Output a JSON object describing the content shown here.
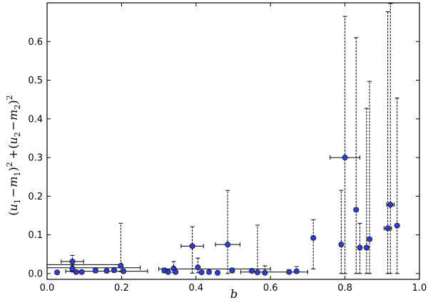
{
  "chart_data": {
    "type": "scatter",
    "xlabel": "b",
    "ylabel": "(u₁−m₁)² + (u₂−m₂)²",
    "ylabel_parts": {
      "open1": "(",
      "u1": "u",
      "s1": "1",
      "minus1": "−",
      "m1": "m",
      "s1b": "1",
      "close1": ")",
      "sq1": "2",
      "plus": "+",
      "open2": "(",
      "u2": "u",
      "s2": "2",
      "minus2": "−",
      "m2": "m",
      "s2b": "2",
      "close2": ")",
      "sq2": "2"
    },
    "xlim": [
      0.0,
      1.0
    ],
    "ylim": [
      -0.015,
      0.7
    ],
    "x_ticks": [
      0.0,
      0.2,
      0.4,
      0.6,
      0.8,
      1.0
    ],
    "x_tick_labels": [
      "0.0",
      "0.2",
      "0.4",
      "0.6",
      "0.8",
      "1.0"
    ],
    "y_ticks": [
      0.0,
      0.1,
      0.2,
      0.3,
      0.4,
      0.5,
      0.6
    ],
    "y_tick_labels": [
      "0.0",
      "0.1",
      "0.2",
      "0.3",
      "0.4",
      "0.5",
      "0.6"
    ],
    "grid": false,
    "legend": "none",
    "marker_color": "#2f3bd6",
    "errorbar_color": "#000000",
    "points": [
      {
        "x": 0.027,
        "y": 0.003,
        "xerr": 0.0,
        "yerr_lo": 0.003,
        "yerr_hi": 0.003
      },
      {
        "x": 0.068,
        "y": 0.031,
        "xerr": 0.03,
        "yerr_lo": 0.02,
        "yerr_hi": 0.016
      },
      {
        "x": 0.068,
        "y": 0.012,
        "xerr": 0.0,
        "yerr_lo": 0.008,
        "yerr_hi": 0.008
      },
      {
        "x": 0.078,
        "y": 0.004,
        "xerr": 0.0,
        "yerr_lo": 0.004,
        "yerr_hi": 0.004
      },
      {
        "x": 0.093,
        "y": 0.004,
        "xerr": 0.0,
        "yerr_lo": 0.004,
        "yerr_hi": 0.004
      },
      {
        "x": 0.13,
        "y": 0.008,
        "xerr": 0.0,
        "yerr_lo": 0.006,
        "yerr_hi": 0.006
      },
      {
        "x": 0.16,
        "y": 0.007,
        "xerr": 0.0,
        "yerr_lo": 0.005,
        "yerr_hi": 0.005
      },
      {
        "x": 0.18,
        "y": 0.009,
        "xerr": 0.0,
        "yerr_lo": 0.006,
        "yerr_hi": 0.006
      },
      {
        "x": 0.198,
        "y": 0.02,
        "xerr": 0.0,
        "yerr_lo": 0.015,
        "yerr_hi": 0.11
      },
      {
        "x": 0.205,
        "y": 0.006,
        "xerr": 0.0,
        "yerr_lo": 0.005,
        "yerr_hi": 0.005
      },
      {
        "x": 0.315,
        "y": 0.008,
        "xerr": 0.0,
        "yerr_lo": 0.006,
        "yerr_hi": 0.006
      },
      {
        "x": 0.325,
        "y": 0.004,
        "xerr": 0.0,
        "yerr_lo": 0.004,
        "yerr_hi": 0.004
      },
      {
        "x": 0.34,
        "y": 0.013,
        "xerr": 0.0,
        "yerr_lo": 0.01,
        "yerr_hi": 0.018
      },
      {
        "x": 0.345,
        "y": 0.004,
        "xerr": 0.0,
        "yerr_lo": 0.004,
        "yerr_hi": 0.004
      },
      {
        "x": 0.39,
        "y": 0.071,
        "xerr": 0.03,
        "yerr_lo": 0.07,
        "yerr_hi": 0.05
      },
      {
        "x": 0.405,
        "y": 0.016,
        "xerr": 0.0,
        "yerr_lo": 0.014,
        "yerr_hi": 0.024
      },
      {
        "x": 0.415,
        "y": 0.003,
        "xerr": 0.0,
        "yerr_lo": 0.003,
        "yerr_hi": 0.003
      },
      {
        "x": 0.435,
        "y": 0.004,
        "xerr": 0.0,
        "yerr_lo": 0.004,
        "yerr_hi": 0.004
      },
      {
        "x": 0.458,
        "y": 0.002,
        "xerr": 0.0,
        "yerr_lo": 0.002,
        "yerr_hi": 0.002
      },
      {
        "x": 0.485,
        "y": 0.075,
        "xerr": 0.033,
        "yerr_lo": 0.075,
        "yerr_hi": 0.14
      },
      {
        "x": 0.497,
        "y": 0.008,
        "xerr": 0.0,
        "yerr_lo": 0.006,
        "yerr_hi": 0.006
      },
      {
        "x": 0.55,
        "y": 0.007,
        "xerr": 0.0,
        "yerr_lo": 0.005,
        "yerr_hi": 0.005
      },
      {
        "x": 0.565,
        "y": 0.003,
        "xerr": 0.0,
        "yerr_lo": 0.003,
        "yerr_hi": 0.122
      },
      {
        "x": 0.585,
        "y": 0.002,
        "xerr": 0.0,
        "yerr_lo": 0.002,
        "yerr_hi": 0.018
      },
      {
        "x": 0.65,
        "y": 0.004,
        "xerr": 0.0,
        "yerr_lo": 0.004,
        "yerr_hi": 0.006
      },
      {
        "x": 0.67,
        "y": 0.006,
        "xerr": 0.0,
        "yerr_lo": 0.005,
        "yerr_hi": 0.012
      },
      {
        "x": 0.715,
        "y": 0.092,
        "xerr": 0.0,
        "yerr_lo": 0.08,
        "yerr_hi": 0.047
      },
      {
        "x": 0.79,
        "y": 0.075,
        "xerr": 0.0,
        "yerr_lo": 0.075,
        "yerr_hi": 0.14
      },
      {
        "x": 0.8,
        "y": 0.3,
        "xerr": 0.04,
        "yerr_lo": 0.3,
        "yerr_hi": 0.365
      },
      {
        "x": 0.83,
        "y": 0.165,
        "xerr": 0.0,
        "yerr_lo": 0.165,
        "yerr_hi": 0.445
      },
      {
        "x": 0.84,
        "y": 0.067,
        "xerr": 0.0,
        "yerr_lo": 0.067,
        "yerr_hi": 0.063
      },
      {
        "x": 0.858,
        "y": 0.067,
        "xerr": 0.0,
        "yerr_lo": 0.067,
        "yerr_hi": 0.36
      },
      {
        "x": 0.866,
        "y": 0.089,
        "xerr": 0.0,
        "yerr_lo": 0.089,
        "yerr_hi": 0.408
      },
      {
        "x": 0.915,
        "y": 0.117,
        "xerr": 0.01,
        "yerr_lo": 0.117,
        "yerr_hi": 0.56
      },
      {
        "x": 0.922,
        "y": 0.178,
        "xerr": 0.01,
        "yerr_lo": 0.178,
        "yerr_hi": 0.52
      },
      {
        "x": 0.94,
        "y": 0.124,
        "xerr": 0.0,
        "yerr_lo": 0.124,
        "yerr_hi": 0.33
      }
    ],
    "horizontal_only_errorbars": [
      {
        "x_lo": 0.0,
        "x_hi": 0.25,
        "y": 0.015
      },
      {
        "x_lo": 0.0,
        "x_hi": 0.2,
        "y": 0.023
      },
      {
        "x_lo": 0.05,
        "x_hi": 0.27,
        "y": 0.006
      },
      {
        "x_lo": 0.3,
        "x_hi": 0.6,
        "y": 0.012
      },
      {
        "x_lo": 0.52,
        "x_hi": 0.7,
        "y": 0.004
      }
    ]
  }
}
